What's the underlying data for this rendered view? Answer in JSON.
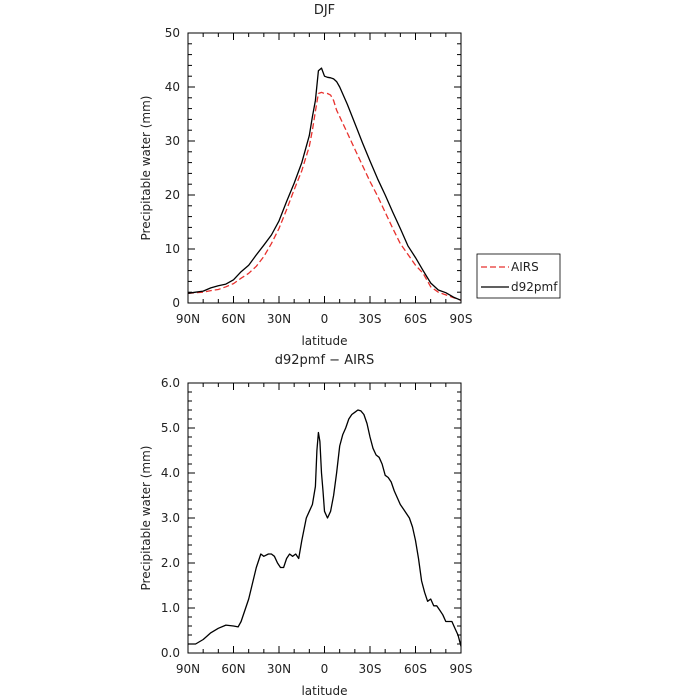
{
  "chart_data": [
    {
      "type": "line",
      "title": "DJF",
      "xlabel": "latitude",
      "ylabel": "Precipitable water (mm)",
      "xlim": [
        -90,
        90
      ],
      "ylim": [
        0,
        50
      ],
      "x_ticks": [
        {
          "value": -90,
          "label": "90N"
        },
        {
          "value": -60,
          "label": "60N"
        },
        {
          "value": -30,
          "label": "30N"
        },
        {
          "value": 0,
          "label": "0"
        },
        {
          "value": 30,
          "label": "30S"
        },
        {
          "value": 60,
          "label": "60S"
        },
        {
          "value": 90,
          "label": "90S"
        }
      ],
      "y_ticks": [
        {
          "value": 0,
          "label": "0"
        },
        {
          "value": 10,
          "label": "10"
        },
        {
          "value": 20,
          "label": "20"
        },
        {
          "value": 30,
          "label": "30"
        },
        {
          "value": 40,
          "label": "40"
        },
        {
          "value": 50,
          "label": "50"
        }
      ],
      "legend_position": "right",
      "series": [
        {
          "name": "AIRS",
          "color": "#e8322e",
          "style": "dashed",
          "x": [
            -90,
            -85,
            -80,
            -75,
            -70,
            -65,
            -60,
            -55,
            -50,
            -45,
            -40,
            -35,
            -30,
            -25,
            -20,
            -15,
            -10,
            -8,
            -6,
            -4,
            -2,
            0,
            2,
            4,
            6,
            8,
            10,
            15,
            20,
            25,
            30,
            35,
            40,
            45,
            50,
            55,
            60,
            65,
            70,
            75,
            80,
            85,
            90
          ],
          "y": [
            1.8,
            1.9,
            2.0,
            2.3,
            2.5,
            3.0,
            3.6,
            4.6,
            5.5,
            6.8,
            8.6,
            11.0,
            13.8,
            17.3,
            21.0,
            24.5,
            29.0,
            32.0,
            35.5,
            38.8,
            39.0,
            38.8,
            38.8,
            38.5,
            37.5,
            35.7,
            34.5,
            31.5,
            28.5,
            25.5,
            22.5,
            19.8,
            16.8,
            13.8,
            11.0,
            9.0,
            7.0,
            5.5,
            3.0,
            2.0,
            1.5,
            1.0,
            0.5
          ]
        },
        {
          "name": "d92pmf",
          "color": "#000000",
          "style": "solid",
          "x": [
            -90,
            -85,
            -80,
            -75,
            -70,
            -65,
            -60,
            -55,
            -50,
            -45,
            -40,
            -35,
            -30,
            -25,
            -20,
            -15,
            -10,
            -8,
            -6,
            -4,
            -2,
            0,
            2,
            4,
            6,
            8,
            10,
            15,
            20,
            25,
            30,
            35,
            40,
            45,
            50,
            55,
            60,
            65,
            70,
            75,
            80,
            85,
            90
          ],
          "y": [
            1.8,
            2.0,
            2.2,
            2.8,
            3.2,
            3.5,
            4.3,
            5.8,
            7.0,
            8.9,
            10.7,
            12.6,
            15.2,
            18.8,
            22.2,
            26.0,
            31.0,
            34.5,
            37.5,
            43.0,
            43.5,
            42.0,
            41.8,
            41.7,
            41.5,
            41.0,
            40.0,
            36.8,
            33.3,
            29.7,
            26.3,
            23.0,
            20.0,
            16.8,
            13.8,
            10.6,
            8.4,
            6.0,
            3.7,
            2.4,
            1.9,
            1.1,
            0.5
          ]
        }
      ]
    },
    {
      "type": "line",
      "title": "d92pmf − AIRS",
      "xlabel": "latitude",
      "ylabel": "Precipitable water (mm)",
      "xlim": [
        -90,
        90
      ],
      "ylim": [
        0,
        6
      ],
      "x_ticks": [
        {
          "value": -90,
          "label": "90N"
        },
        {
          "value": -60,
          "label": "60N"
        },
        {
          "value": -30,
          "label": "30N"
        },
        {
          "value": 0,
          "label": "0"
        },
        {
          "value": 30,
          "label": "30S"
        },
        {
          "value": 60,
          "label": "60S"
        },
        {
          "value": 90,
          "label": "90S"
        }
      ],
      "y_ticks": [
        {
          "value": 0,
          "label": "0.0"
        },
        {
          "value": 1,
          "label": "1.0"
        },
        {
          "value": 2,
          "label": "2.0"
        },
        {
          "value": 3,
          "label": "3.0"
        },
        {
          "value": 4,
          "label": "4.0"
        },
        {
          "value": 5,
          "label": "5.0"
        },
        {
          "value": 6,
          "label": "6.0"
        }
      ],
      "series": [
        {
          "color": "#000000",
          "style": "solid",
          "x": [
            -90,
            -85,
            -80,
            -75,
            -70,
            -65,
            -60,
            -57,
            -55,
            -50,
            -45,
            -42,
            -40,
            -37,
            -35,
            -33,
            -31,
            -29,
            -27,
            -25,
            -23,
            -21,
            -19,
            -17,
            -15,
            -12,
            -10,
            -8,
            -6,
            -5,
            -4,
            -3,
            -2,
            -1,
            0,
            2,
            4,
            6,
            8,
            10,
            12,
            14,
            16,
            18,
            20,
            22,
            24,
            26,
            28,
            30,
            32,
            34,
            36,
            38,
            40,
            42,
            44,
            46,
            48,
            50,
            52,
            54,
            56,
            58,
            60,
            62,
            64,
            66,
            68,
            70,
            72,
            74,
            76,
            78,
            80,
            82,
            84,
            86,
            88,
            90
          ],
          "y": [
            0.2,
            0.2,
            0.3,
            0.45,
            0.55,
            0.62,
            0.6,
            0.58,
            0.7,
            1.2,
            1.9,
            2.2,
            2.15,
            2.2,
            2.2,
            2.15,
            2.0,
            1.9,
            1.9,
            2.1,
            2.2,
            2.15,
            2.2,
            2.1,
            2.5,
            3.0,
            3.15,
            3.3,
            3.7,
            4.5,
            4.9,
            4.7,
            4.0,
            3.6,
            3.15,
            3.0,
            3.15,
            3.5,
            4.0,
            4.6,
            4.85,
            5.0,
            5.2,
            5.3,
            5.35,
            5.4,
            5.38,
            5.3,
            5.1,
            4.8,
            4.55,
            4.4,
            4.35,
            4.2,
            3.95,
            3.9,
            3.8,
            3.6,
            3.45,
            3.3,
            3.2,
            3.1,
            3.0,
            2.8,
            2.5,
            2.1,
            1.6,
            1.35,
            1.15,
            1.2,
            1.05,
            1.05,
            0.95,
            0.85,
            0.7,
            0.7,
            0.7,
            0.55,
            0.4,
            0.15
          ]
        }
      ]
    }
  ]
}
